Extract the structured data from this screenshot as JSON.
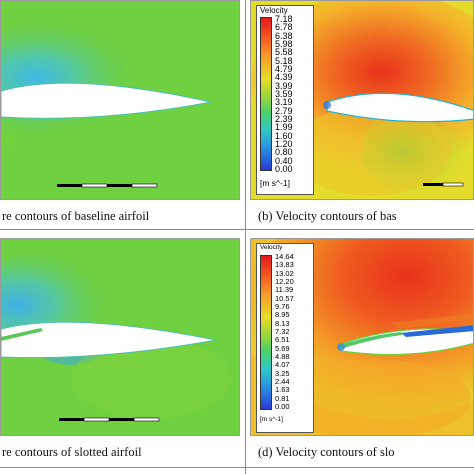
{
  "captions": {
    "a": "re contours of baseline airfoil",
    "b": "(b) Velocity contours of bas",
    "c": "re contours of slotted airfoil",
    "d": "(d) Velocity contours of slo"
  },
  "legend_b": {
    "title": "Velocity",
    "unit": "[m s^-1]",
    "ticks": [
      "7.18",
      "6.78",
      "6.38",
      "5.98",
      "5.58",
      "5.18",
      "4.79",
      "4.39",
      "3.99",
      "3.59",
      "3.19",
      "2.79",
      "2.39",
      "1.99",
      "1.60",
      "1.20",
      "0.80",
      "0.40",
      "0.00"
    ]
  },
  "legend_d": {
    "title": "Velocity",
    "unit": "[m s^-1]",
    "ticks": [
      "14.64",
      "13.83",
      "13.02",
      "12.20",
      "11.39",
      "10.57",
      "9.76",
      "8.95",
      "8.13",
      "7.32",
      "6.51",
      "5.69",
      "4.88",
      "4.07",
      "3.25",
      "2.44",
      "1.63",
      "0.81",
      "0.00"
    ]
  },
  "colors": {
    "field_green": "#6fd040",
    "jet_red": "#e8321a",
    "jet_orange": "#f39a22",
    "jet_yellow": "#e8e22a",
    "jet_cyan": "#27c8d8",
    "jet_blue": "#2a3bd6",
    "airfoil": "#ffffff"
  }
}
